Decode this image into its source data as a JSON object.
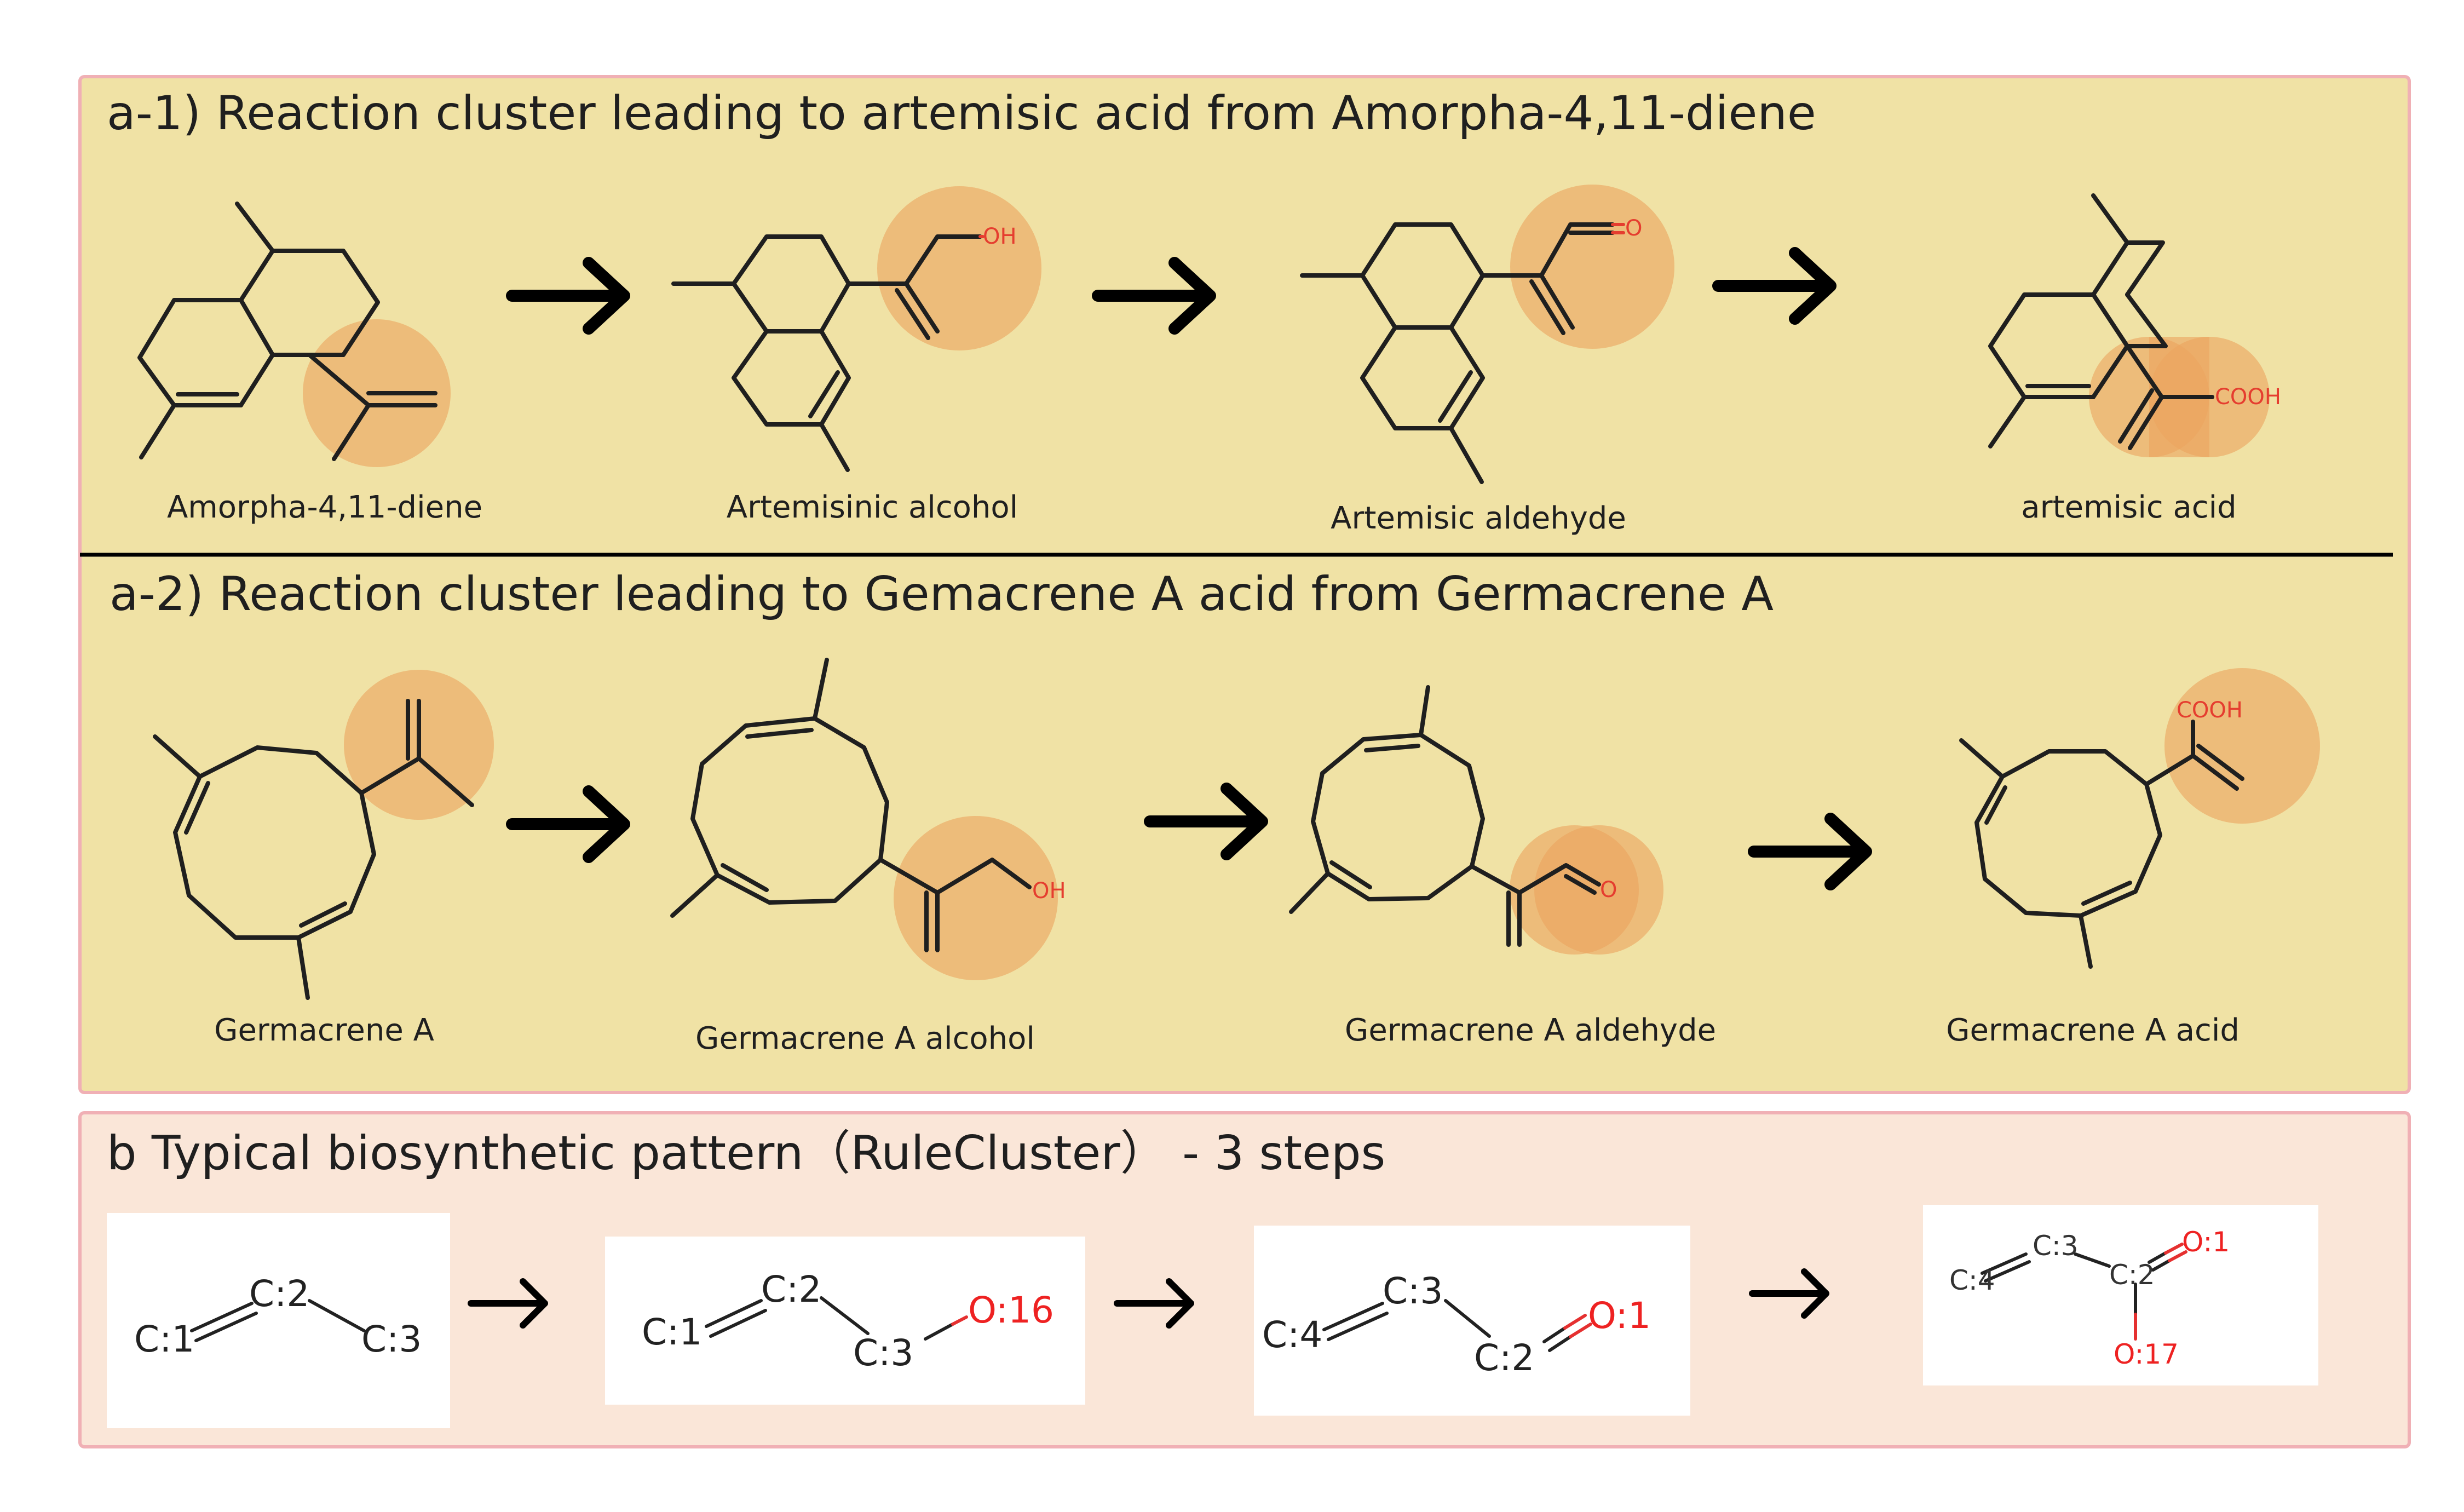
{
  "colors": {
    "panel_a_bg": "#f0e2a5",
    "panel_a_border": "#f0b0b5",
    "panel_b_bg": "#fae6d8",
    "panel_b_border": "#f0b0b5",
    "highlight": "#eba55f",
    "oxygen": "#e53d2f"
  },
  "panel_a1": {
    "title": "a-1)  Reaction cluster  leading to artemisic acid from Amorpha-4,11-diene",
    "compounds": [
      {
        "label": "Amorpha-4,11-diene"
      },
      {
        "label": "Artemisinic alcohol",
        "group": "OH"
      },
      {
        "label": "Artemisic aldehyde",
        "group": "O"
      },
      {
        "label": "artemisic acid",
        "group": "COOH"
      }
    ]
  },
  "panel_a2": {
    "title": "a-2)  Reaction cluster leading to Gemacrene A acid from Germacrene A",
    "compounds": [
      {
        "label": "Germacrene A"
      },
      {
        "label": "Germacrene A alcohol",
        "group": "OH"
      },
      {
        "label": "Germacrene A aldehyde",
        "group": "O"
      },
      {
        "label": "Germacrene A acid",
        "group": "COOH"
      }
    ]
  },
  "panel_b": {
    "title": "b Typical biosynthetic pattern（RuleCluster） - 3 steps",
    "rules": [
      {
        "atoms": [
          "C:1",
          "C:2",
          "C:3"
        ]
      },
      {
        "atoms": [
          "C:1",
          "C:2",
          "C:3",
          "O:16"
        ]
      },
      {
        "atoms": [
          "C:4",
          "C:3",
          "C:2",
          "O:1"
        ]
      },
      {
        "atoms": [
          "C:4",
          "C:3",
          "C:2",
          "O:1",
          "O:17"
        ]
      }
    ]
  }
}
